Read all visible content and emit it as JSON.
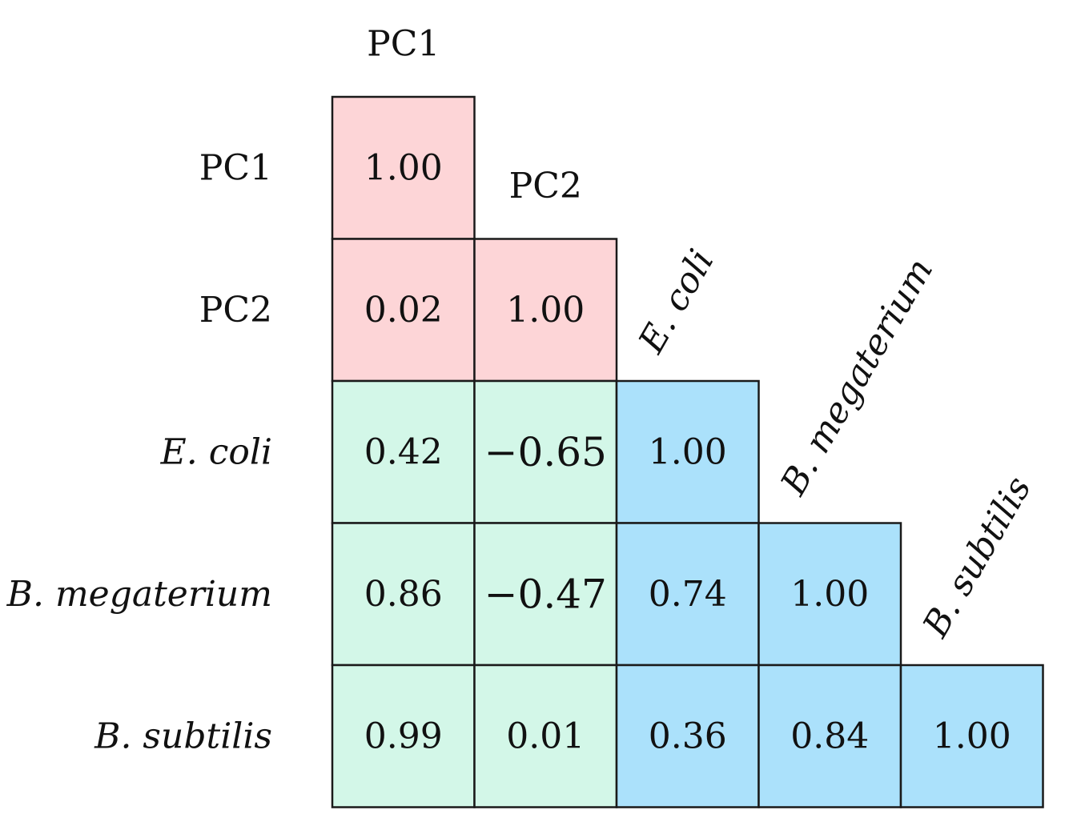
{
  "chart_data": {
    "type": "heatmap",
    "subtype": "lower-triangular correlation matrix",
    "variables": [
      {
        "label": "PC1",
        "italic": false,
        "group": "pc"
      },
      {
        "label": "PC2",
        "italic": false,
        "group": "pc"
      },
      {
        "label": "E. coli",
        "italic": true,
        "group": "species"
      },
      {
        "label": "B. megaterium",
        "italic": true,
        "group": "species"
      },
      {
        "label": "B. subtilis",
        "italic": true,
        "group": "species"
      }
    ],
    "matrix": [
      [
        1.0
      ],
      [
        0.02,
        1.0
      ],
      [
        0.42,
        -0.65,
        1.0
      ],
      [
        0.86,
        -0.47,
        0.74,
        1.0
      ],
      [
        0.99,
        0.01,
        0.36,
        0.84,
        1.0
      ]
    ],
    "display_values": [
      [
        "1.00"
      ],
      [
        "0.02",
        "1.00"
      ],
      [
        "0.42",
        "−0.65",
        "1.00"
      ],
      [
        "0.86",
        "−0.47",
        "0.74",
        "1.00"
      ],
      [
        "0.99",
        "0.01",
        "0.36",
        "0.84",
        "1.00"
      ]
    ],
    "colors": {
      "pc_pc": "#fdd5d7",
      "species_pc": "#d3f7e8",
      "species_species": "#abe1fb",
      "border": "#1a1a1a",
      "text": "#111111"
    }
  }
}
